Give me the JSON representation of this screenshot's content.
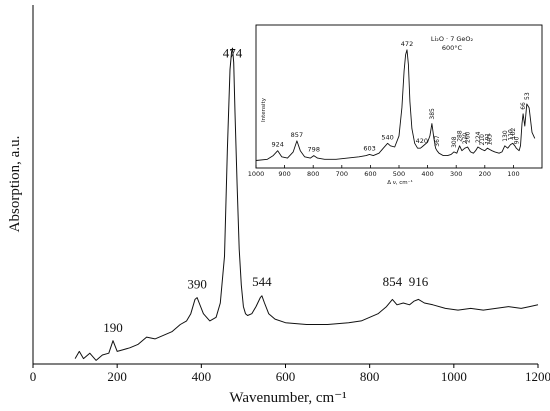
{
  "chart_data": [
    {
      "type": "line",
      "xlabel": "Wavenumber, cm⁻¹",
      "ylabel": "Absorption, a.u.",
      "xlim": [
        0,
        1200
      ],
      "ylim": [
        0,
        100
      ],
      "x_ticks": [
        "0",
        "200",
        "400",
        "600",
        "800",
        "1000",
        "1200"
      ],
      "grid": false,
      "annotations": [
        {
          "x": 190,
          "y": 7.8,
          "label": "190"
        },
        {
          "x": 390,
          "y": 19.9,
          "label": "390"
        },
        {
          "x": 474,
          "y": 84.3,
          "label": "474"
        },
        {
          "x": 544,
          "y": 20.6,
          "label": "544"
        },
        {
          "x": 854,
          "y": 20.6,
          "label": "854"
        },
        {
          "x": 916,
          "y": 20.6,
          "label": "916"
        }
      ],
      "series": [
        {
          "x": [
            100,
            110,
            120,
            135,
            150,
            165,
            180,
            190,
            200,
            215,
            230,
            250,
            270,
            290,
            310,
            330,
            350,
            365,
            375,
            385,
            390,
            395,
            405,
            420,
            435,
            445,
            455,
            462,
            468,
            472,
            474,
            477,
            480,
            485,
            490,
            495,
            500,
            505,
            510,
            520,
            530,
            540,
            544,
            550,
            560,
            575,
            600,
            650,
            700,
            750,
            780,
            800,
            820,
            840,
            854,
            865,
            880,
            895,
            905,
            916,
            930,
            950,
            980,
            1010,
            1040,
            1070,
            1100,
            1130,
            1160,
            1180,
            1200
          ],
          "y": [
            1.5,
            3.5,
            1.5,
            3.0,
            1.0,
            2.5,
            3.0,
            6.5,
            3.5,
            4.0,
            4.5,
            5.5,
            7.5,
            7.0,
            8.0,
            9.0,
            11.0,
            12.0,
            14.0,
            18.0,
            18.5,
            17.0,
            14.0,
            12.0,
            13.0,
            17.0,
            30.0,
            60.0,
            82.0,
            87.0,
            88.0,
            84.0,
            70.0,
            50.0,
            32.0,
            22.0,
            16.0,
            14.0,
            13.5,
            14.0,
            16.0,
            18.5,
            19.0,
            17.0,
            14.0,
            12.5,
            11.5,
            11.0,
            11.0,
            11.5,
            12.0,
            13.0,
            14.0,
            16.0,
            18.0,
            16.5,
            17.0,
            16.5,
            17.5,
            18.0,
            17.0,
            16.5,
            15.5,
            15.0,
            15.5,
            15.0,
            15.5,
            16.0,
            15.5,
            16.0,
            16.5
          ]
        }
      ]
    },
    {
      "type": "line",
      "title": "Li₂O · 7 GeO₂",
      "subtitle": "600°C",
      "xlabel": "Δ ν, cm⁻¹",
      "ylabel": "Intensity",
      "xlim": [
        1000,
        0
      ],
      "ylim": [
        0,
        100
      ],
      "x_ticks": [
        "1000",
        "900",
        "800",
        "700",
        "600",
        "500",
        "400",
        "300",
        "200",
        "100"
      ],
      "annotations": [
        "924",
        "857",
        "798",
        "603",
        "540",
        "472",
        "420",
        "385",
        "367",
        "308",
        "288",
        "270",
        "260",
        "224",
        "210",
        "191",
        "183",
        "130",
        "110",
        "102",
        "90",
        "66",
        "53"
      ],
      "series": [
        {
          "x": [
            1000,
            960,
            940,
            924,
            910,
            890,
            870,
            857,
            845,
            830,
            810,
            798,
            785,
            760,
            720,
            680,
            640,
            615,
            603,
            590,
            570,
            555,
            540,
            530,
            515,
            500,
            490,
            482,
            477,
            472,
            467,
            462,
            455,
            445,
            435,
            425,
            420,
            410,
            400,
            392,
            385,
            378,
            372,
            367,
            360,
            345,
            330,
            318,
            308,
            298,
            288,
            280,
            270,
            260,
            250,
            240,
            232,
            224,
            217,
            210,
            200,
            191,
            183,
            175,
            165,
            150,
            140,
            130,
            120,
            110,
            102,
            95,
            90,
            80,
            75,
            70,
            66,
            60,
            53,
            45,
            35,
            25
          ],
          "y": [
            2,
            3,
            6,
            10,
            5,
            4,
            9,
            18,
            10,
            5,
            4,
            6,
            4,
            3,
            3,
            4,
            5,
            6,
            7,
            6,
            8,
            12,
            16,
            14,
            13,
            22,
            45,
            75,
            88,
            92,
            80,
            50,
            28,
            16,
            12,
            12,
            13,
            15,
            17,
            22,
            32,
            20,
            12,
            10,
            8,
            6,
            6,
            7,
            9,
            8,
            14,
            10,
            12,
            13,
            9,
            8,
            10,
            13,
            12,
            11,
            10,
            12,
            11,
            10,
            9,
            8,
            9,
            14,
            12,
            15,
            16,
            14,
            12,
            10,
            14,
            32,
            40,
            30,
            48,
            45,
            25,
            20
          ]
        }
      ]
    }
  ]
}
